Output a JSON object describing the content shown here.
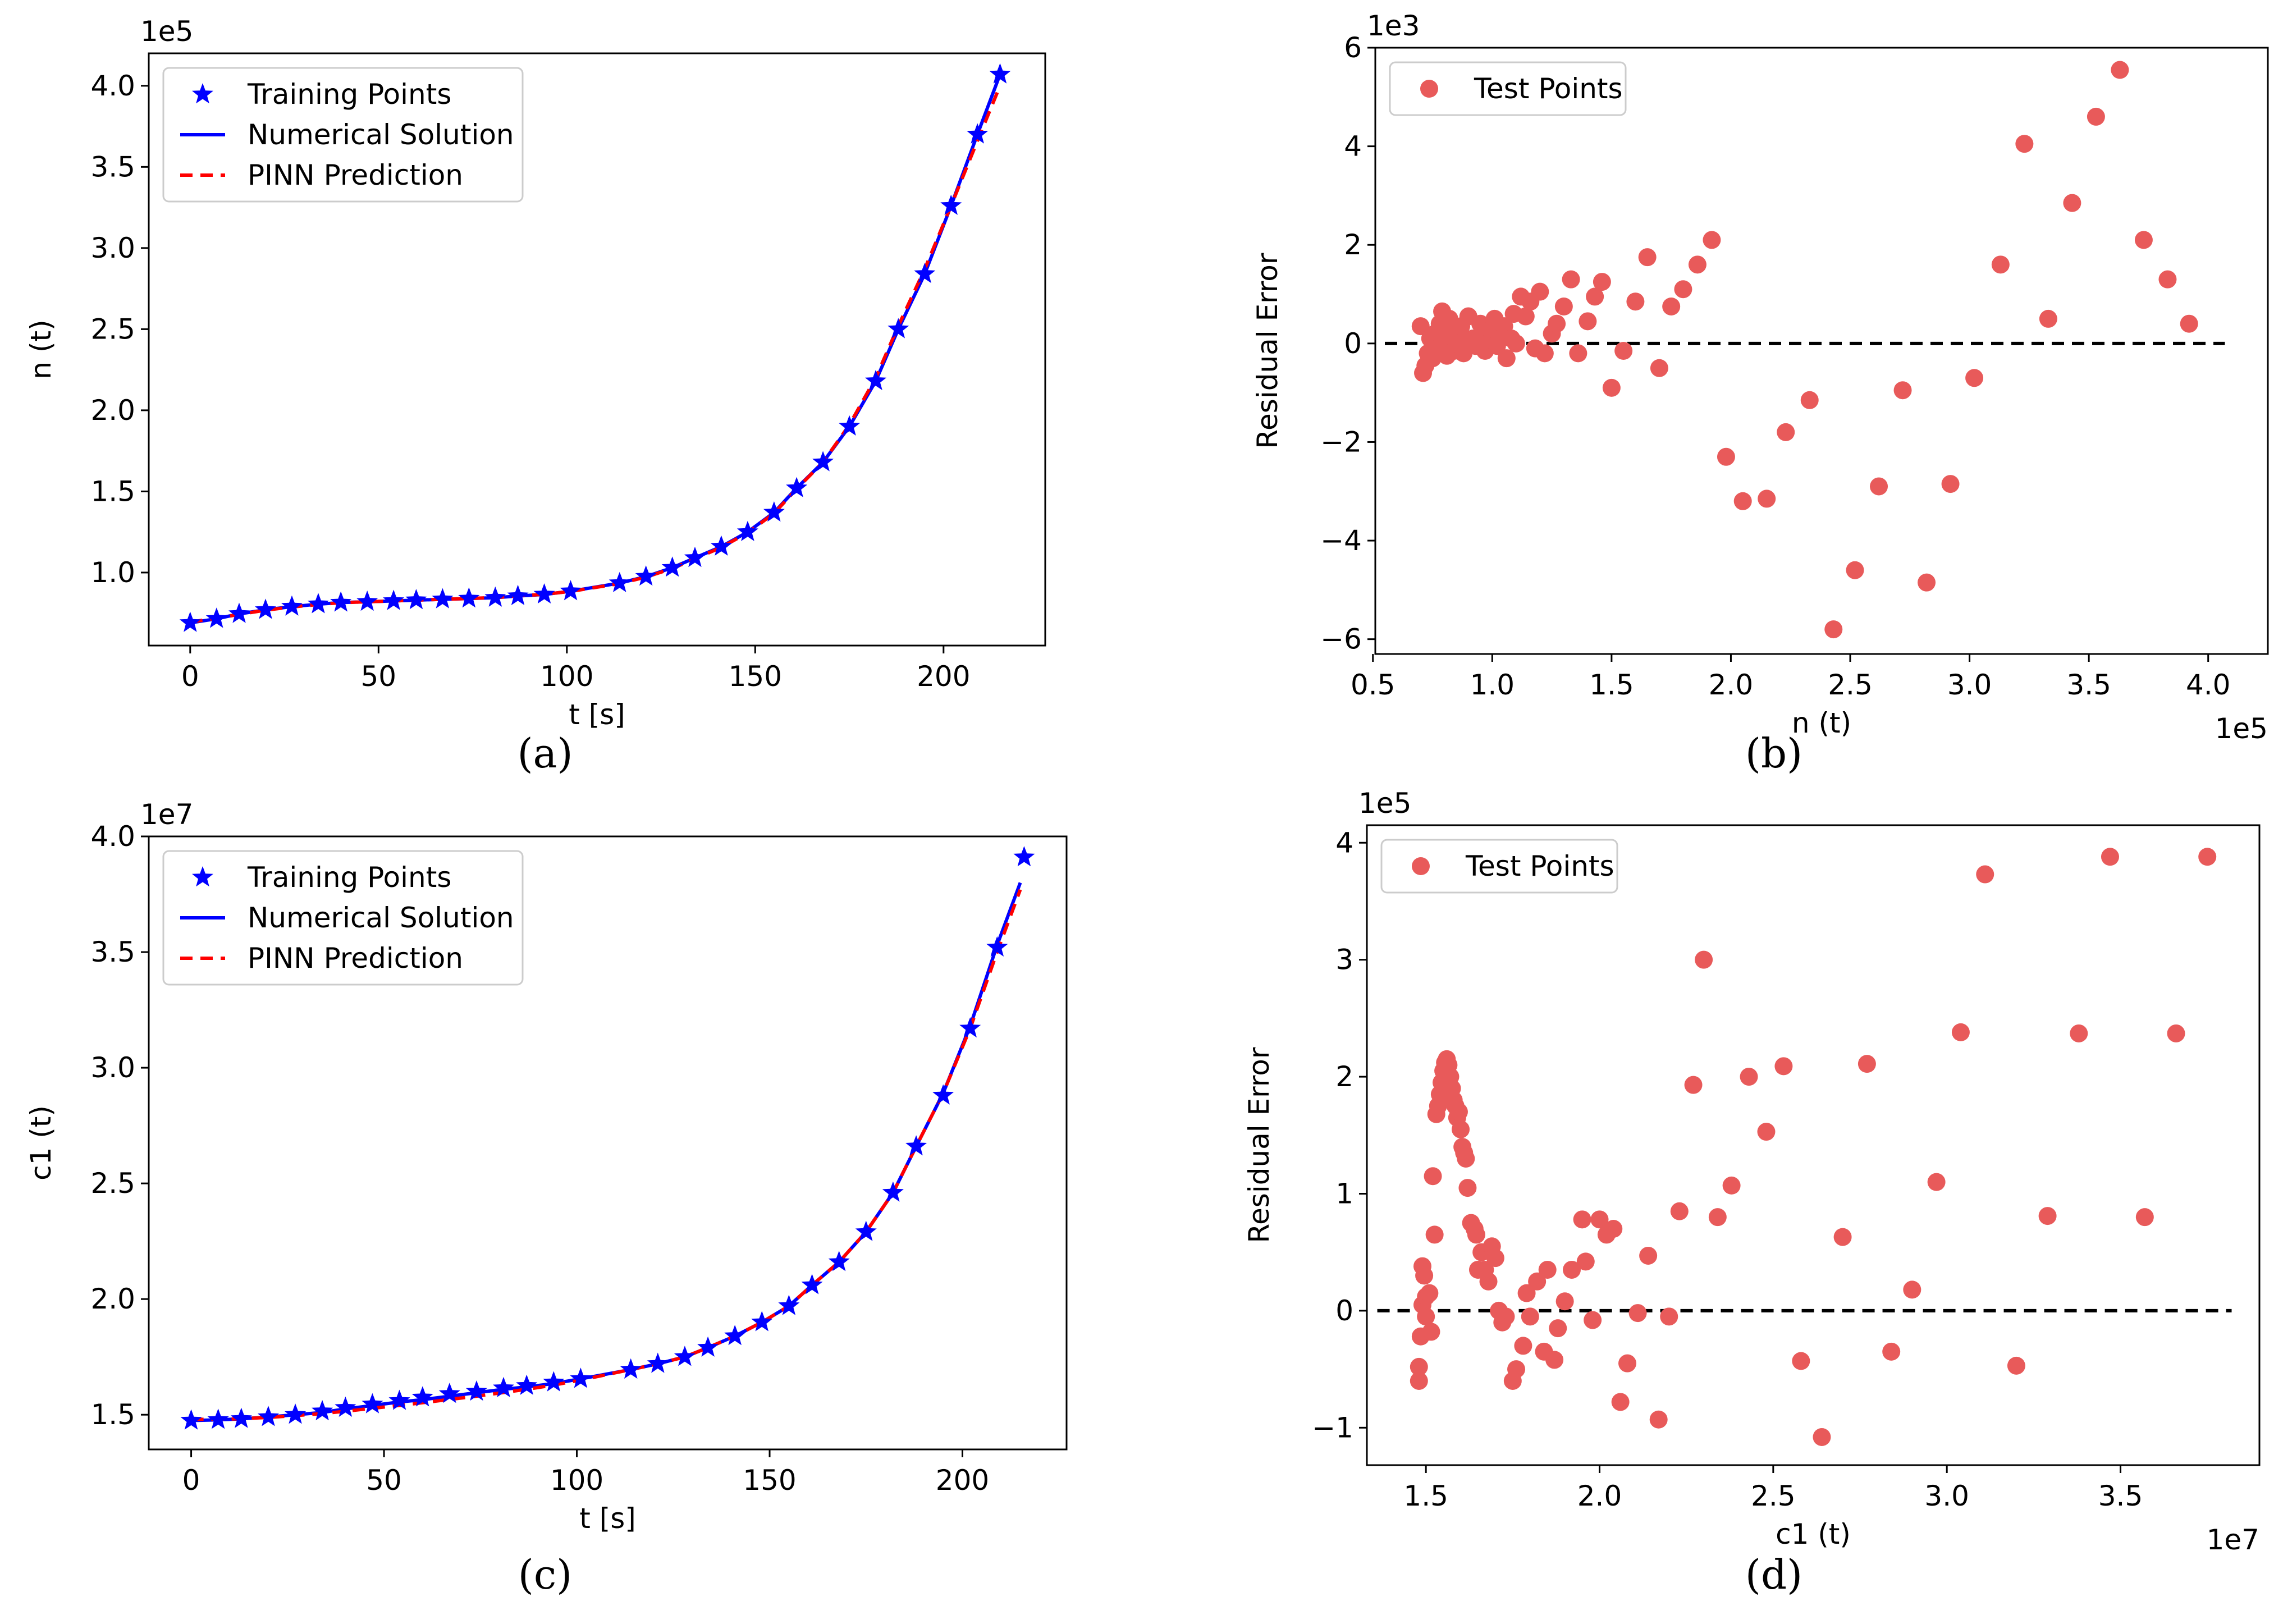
{
  "chart_data": [
    {
      "id": "a",
      "type": "line",
      "panel_label": "(a)",
      "xlabel": "t [s]",
      "ylabel": "n (t)",
      "offset_text": "1e5",
      "xlim": [
        -11,
        227
      ],
      "ylim": [
        0.55,
        4.2
      ],
      "xticks": [
        0,
        50,
        100,
        150,
        200
      ],
      "xtick_labels": [
        "0",
        "50",
        "100",
        "150",
        "200"
      ],
      "yticks": [
        1.0,
        1.5,
        2.0,
        2.5,
        3.0,
        3.5,
        4.0
      ],
      "ytick_labels": [
        "1.0",
        "1.5",
        "2.0",
        "2.5",
        "3.0",
        "3.5",
        "4.0"
      ],
      "legend": {
        "position": "upper-left",
        "entries": [
          {
            "label": "Training Points",
            "kind": "star",
            "color": "#0000ff"
          },
          {
            "label": "Numerical Solution",
            "kind": "line",
            "color": "#0000ff"
          },
          {
            "label": "PINN Prediction",
            "kind": "dashed",
            "color": "#ff0000"
          }
        ]
      },
      "series": [
        {
          "name": "Numerical Solution",
          "style": "solid",
          "color": "#0000ff",
          "x": [
            0,
            7,
            13,
            20,
            27,
            34,
            40,
            47,
            54,
            60,
            67,
            74,
            81,
            87,
            94,
            101,
            114,
            121,
            128,
            134,
            141,
            148,
            155,
            161,
            168,
            175,
            182,
            188,
            195,
            202,
            209,
            215
          ],
          "y": [
            0.69,
            0.715,
            0.745,
            0.77,
            0.79,
            0.805,
            0.815,
            0.82,
            0.825,
            0.83,
            0.835,
            0.84,
            0.845,
            0.855,
            0.865,
            0.885,
            0.935,
            0.975,
            1.03,
            1.09,
            1.16,
            1.25,
            1.37,
            1.52,
            1.68,
            1.9,
            2.18,
            2.5,
            2.84,
            3.26,
            3.7,
            4.07
          ]
        },
        {
          "name": "PINN Prediction",
          "style": "dashed",
          "color": "#ff0000",
          "x": [
            0,
            7,
            13,
            20,
            27,
            34,
            40,
            47,
            54,
            60,
            67,
            74,
            81,
            87,
            94,
            101,
            114,
            121,
            128,
            134,
            141,
            148,
            155,
            161,
            168,
            175,
            182,
            188,
            195,
            202,
            209,
            215
          ],
          "y": [
            0.695,
            0.718,
            0.742,
            0.768,
            0.788,
            0.803,
            0.814,
            0.82,
            0.825,
            0.83,
            0.835,
            0.84,
            0.846,
            0.856,
            0.866,
            0.884,
            0.932,
            0.972,
            1.025,
            1.085,
            1.155,
            1.245,
            1.365,
            1.515,
            1.68,
            1.91,
            2.2,
            2.52,
            2.87,
            3.26,
            3.66,
            4.0
          ]
        },
        {
          "name": "Training Points",
          "style": "star",
          "color": "#0000ff",
          "x": [
            0,
            7,
            13,
            20,
            27,
            34,
            40,
            47,
            54,
            60,
            67,
            74,
            81,
            87,
            94,
            101,
            114,
            121,
            128,
            134,
            141,
            148,
            155,
            161,
            168,
            175,
            182,
            188,
            195,
            202,
            209,
            215
          ],
          "y": [
            0.69,
            0.715,
            0.745,
            0.77,
            0.79,
            0.805,
            0.815,
            0.82,
            0.825,
            0.83,
            0.835,
            0.84,
            0.845,
            0.855,
            0.865,
            0.885,
            0.935,
            0.975,
            1.03,
            1.09,
            1.16,
            1.25,
            1.37,
            1.52,
            1.68,
            1.9,
            2.18,
            2.5,
            2.84,
            3.26,
            3.7,
            4.07
          ]
        }
      ]
    },
    {
      "id": "b",
      "type": "scatter",
      "panel_label": "(b)",
      "xlabel": "n (t)",
      "ylabel": "Residual Error",
      "offset_text_y": "1e3",
      "offset_text_x": "1e5",
      "xlim": [
        0.51,
        4.25
      ],
      "ylim": [
        -6.3,
        6.0
      ],
      "xticks": [
        0.5,
        1.0,
        1.5,
        2.0,
        2.5,
        3.0,
        3.5,
        4.0
      ],
      "xtick_labels": [
        "0.5",
        "1.0",
        "1.5",
        "2.0",
        "2.5",
        "3.0",
        "3.5",
        "4.0"
      ],
      "yticks": [
        -6,
        -4,
        -2,
        0,
        2,
        4,
        6
      ],
      "ytick_labels": [
        "−6",
        "−4",
        "−2",
        "0",
        "2",
        "4",
        "6"
      ],
      "legend": {
        "position": "upper-left",
        "entries": [
          {
            "label": "Test Points",
            "kind": "dot",
            "color": "#e85a5a"
          }
        ]
      },
      "reference_line": {
        "y": 0,
        "x_from": 0.55,
        "x_to": 4.07,
        "style": "dashed",
        "color": "#000000"
      },
      "series": [
        {
          "name": "Test Points",
          "color": "#e85a5a",
          "x": [
            0.7,
            0.71,
            0.72,
            0.73,
            0.74,
            0.75,
            0.76,
            0.77,
            0.78,
            0.79,
            0.8,
            0.81,
            0.82,
            0.83,
            0.84,
            0.85,
            0.86,
            0.87,
            0.88,
            0.89,
            0.9,
            0.92,
            0.93,
            0.95,
            0.96,
            0.97,
            0.98,
            1.0,
            1.01,
            1.02,
            1.03,
            1.05,
            1.06,
            1.08,
            1.09,
            1.1,
            1.12,
            1.14,
            1.16,
            1.18,
            1.2,
            1.22,
            1.25,
            1.27,
            1.3,
            1.33,
            1.36,
            1.4,
            1.43,
            1.46,
            1.5,
            1.55,
            1.6,
            1.65,
            1.7,
            1.75,
            1.8,
            1.86,
            1.92,
            1.98,
            2.05,
            2.15,
            2.23,
            2.33,
            2.43,
            2.52,
            2.62,
            2.72,
            2.82,
            2.92,
            3.02,
            3.13,
            3.23,
            3.33,
            3.43,
            3.53,
            3.63,
            3.73,
            3.83,
            3.92
          ],
          "y": [
            0.35,
            -0.6,
            -0.45,
            -0.2,
            0.1,
            -0.3,
            0.2,
            -0.1,
            0.4,
            0.65,
            0.1,
            -0.25,
            0.5,
            0.3,
            -0.15,
            0.0,
            0.25,
            0.35,
            -0.2,
            0.05,
            0.55,
            0.1,
            -0.05,
            0.4,
            0.2,
            -0.15,
            0.0,
            0.3,
            0.5,
            -0.05,
            0.1,
            0.35,
            -0.3,
            0.1,
            0.6,
            0.0,
            0.95,
            0.55,
            0.85,
            -0.1,
            1.05,
            -0.2,
            0.2,
            0.4,
            0.75,
            1.3,
            -0.2,
            0.45,
            0.95,
            1.25,
            -0.9,
            -0.15,
            0.85,
            1.75,
            -0.5,
            0.75,
            1.1,
            1.6,
            2.1,
            -2.3,
            -3.2,
            -3.15,
            -1.8,
            -1.15,
            -5.8,
            -4.6,
            -2.9,
            -0.95,
            -4.85,
            -2.85,
            -0.7,
            1.6,
            4.05,
            0.5,
            2.85,
            4.6,
            5.55,
            2.1,
            1.3,
            0.4
          ]
        }
      ]
    },
    {
      "id": "c",
      "type": "line",
      "panel_label": "(c)",
      "xlabel": "t [s]",
      "ylabel": "c1 (t)",
      "offset_text": "1e7",
      "xlim": [
        -11,
        227
      ],
      "ylim": [
        1.35,
        4.0
      ],
      "xticks": [
        0,
        50,
        100,
        150,
        200
      ],
      "xtick_labels": [
        "0",
        "50",
        "100",
        "150",
        "200"
      ],
      "yticks": [
        1.5,
        2.0,
        2.5,
        3.0,
        3.5,
        4.0
      ],
      "ytick_labels": [
        "1.5",
        "2.0",
        "2.5",
        "3.0",
        "3.5",
        "4.0"
      ],
      "legend": {
        "position": "upper-left",
        "entries": [
          {
            "label": "Training Points",
            "kind": "star",
            "color": "#0000ff"
          },
          {
            "label": "Numerical Solution",
            "kind": "line",
            "color": "#0000ff"
          },
          {
            "label": "PINN Prediction",
            "kind": "dashed",
            "color": "#ff0000"
          }
        ]
      },
      "series": [
        {
          "name": "Numerical Solution",
          "style": "solid",
          "color": "#0000ff",
          "x": [
            0,
            7,
            13,
            20,
            27,
            34,
            40,
            47,
            54,
            60,
            67,
            74,
            81,
            87,
            94,
            101,
            114,
            121,
            128,
            134,
            141,
            148,
            155,
            161,
            168,
            175,
            182,
            188,
            195,
            202,
            209,
            215
          ],
          "y": [
            1.475,
            1.478,
            1.482,
            1.49,
            1.5,
            1.51,
            1.525,
            1.54,
            1.555,
            1.565,
            1.58,
            1.595,
            1.61,
            1.62,
            1.635,
            1.655,
            1.695,
            1.72,
            1.75,
            1.79,
            1.84,
            1.9,
            1.97,
            2.06,
            2.16,
            2.29,
            2.46,
            2.66,
            2.89,
            3.18,
            3.53,
            3.8
          ]
        },
        {
          "name": "PINN Prediction",
          "style": "dashed",
          "color": "#ff0000",
          "x": [
            0,
            7,
            13,
            20,
            27,
            34,
            40,
            47,
            54,
            60,
            67,
            74,
            81,
            87,
            94,
            101,
            114,
            121,
            128,
            134,
            141,
            148,
            155,
            161,
            168,
            175,
            182,
            188,
            195,
            202,
            209,
            215
          ],
          "y": [
            1.48,
            1.48,
            1.483,
            1.488,
            1.496,
            1.505,
            1.515,
            1.528,
            1.54,
            1.552,
            1.566,
            1.58,
            1.596,
            1.61,
            1.628,
            1.65,
            1.695,
            1.72,
            1.75,
            1.79,
            1.84,
            1.9,
            1.97,
            2.06,
            2.16,
            2.29,
            2.46,
            2.66,
            2.89,
            3.17,
            3.5,
            3.77
          ]
        },
        {
          "name": "Training Points",
          "style": "star",
          "color": "#0000ff",
          "x": [
            0,
            7,
            13,
            20,
            27,
            34,
            40,
            47,
            54,
            60,
            67,
            74,
            81,
            87,
            94,
            101,
            114,
            121,
            128,
            134,
            141,
            148,
            155,
            161,
            168,
            175,
            182,
            188,
            195,
            202,
            209,
            216
          ],
          "y": [
            1.475,
            1.478,
            1.482,
            1.49,
            1.5,
            1.515,
            1.53,
            1.545,
            1.56,
            1.575,
            1.59,
            1.6,
            1.615,
            1.625,
            1.64,
            1.655,
            1.695,
            1.72,
            1.75,
            1.79,
            1.84,
            1.9,
            1.97,
            2.06,
            2.16,
            2.29,
            2.46,
            2.66,
            2.88,
            3.17,
            3.52,
            3.91
          ]
        }
      ]
    },
    {
      "id": "d",
      "type": "scatter",
      "panel_label": "(d)",
      "xlabel": "c1 (t)",
      "ylabel": "Residual Error",
      "offset_text_y": "1e5",
      "offset_text_x": "1e7",
      "xlim": [
        1.33,
        3.9
      ],
      "ylim": [
        -1.32,
        4.15
      ],
      "xticks": [
        1.5,
        2.0,
        2.5,
        3.0,
        3.5
      ],
      "xtick_labels": [
        "1.5",
        "2.0",
        "2.5",
        "3.0",
        "3.5"
      ],
      "yticks": [
        -1,
        0,
        1,
        2,
        3,
        4
      ],
      "ytick_labels": [
        "−1",
        "0",
        "1",
        "2",
        "3",
        "4"
      ],
      "legend": {
        "position": "upper-left",
        "entries": [
          {
            "label": "Test Points",
            "kind": "dot",
            "color": "#e85a5a"
          }
        ]
      },
      "reference_line": {
        "y": 0,
        "x_from": 1.36,
        "x_to": 3.82,
        "style": "dashed",
        "color": "#000000"
      },
      "series": [
        {
          "name": "Test Points",
          "color": "#e85a5a",
          "x": [
            1.48,
            1.48,
            1.485,
            1.49,
            1.49,
            1.495,
            1.5,
            1.5,
            1.51,
            1.515,
            1.52,
            1.525,
            1.53,
            1.535,
            1.54,
            1.545,
            1.55,
            1.555,
            1.56,
            1.565,
            1.57,
            1.575,
            1.58,
            1.585,
            1.59,
            1.595,
            1.6,
            1.605,
            1.61,
            1.615,
            1.62,
            1.63,
            1.64,
            1.645,
            1.65,
            1.66,
            1.67,
            1.68,
            1.69,
            1.7,
            1.71,
            1.72,
            1.73,
            1.75,
            1.76,
            1.78,
            1.79,
            1.8,
            1.82,
            1.84,
            1.85,
            1.87,
            1.88,
            1.9,
            1.92,
            1.95,
            1.96,
            1.98,
            2.0,
            2.02,
            2.04,
            2.06,
            2.08,
            2.11,
            2.14,
            2.17,
            2.2,
            2.23,
            2.27,
            2.3,
            2.34,
            2.38,
            2.43,
            2.48,
            2.53,
            2.58,
            2.64,
            2.7,
            2.77,
            2.84,
            2.9,
            2.97,
            3.04,
            3.11,
            3.2,
            3.29,
            3.38,
            3.47,
            3.57,
            3.66,
            3.75
          ],
          "y": [
            -0.6,
            -0.48,
            -0.22,
            0.05,
            0.38,
            0.3,
            0.12,
            -0.05,
            0.15,
            -0.18,
            1.15,
            0.65,
            1.68,
            1.75,
            1.85,
            1.95,
            2.05,
            2.12,
            2.15,
            2.1,
            2.0,
            1.9,
            1.8,
            1.75,
            1.65,
            1.7,
            1.55,
            1.4,
            1.35,
            1.3,
            1.05,
            0.75,
            0.7,
            0.65,
            0.35,
            0.5,
            0.35,
            0.25,
            0.55,
            0.45,
            0.0,
            -0.1,
            -0.05,
            -0.6,
            -0.5,
            -0.3,
            0.15,
            -0.05,
            0.25,
            -0.35,
            0.35,
            -0.42,
            -0.15,
            0.08,
            0.35,
            0.78,
            0.42,
            -0.08,
            0.78,
            0.65,
            0.7,
            -0.78,
            -0.45,
            -0.02,
            0.47,
            -0.93,
            -0.05,
            0.85,
            1.93,
            3.0,
            0.8,
            1.07,
            2.0,
            1.53,
            2.09,
            -0.43,
            -1.08,
            0.63,
            2.11,
            -0.35,
            0.18,
            1.1,
            2.38,
            3.73,
            -0.47,
            0.81,
            2.37,
            3.88,
            0.8,
            2.37,
            3.88
          ]
        }
      ]
    }
  ]
}
